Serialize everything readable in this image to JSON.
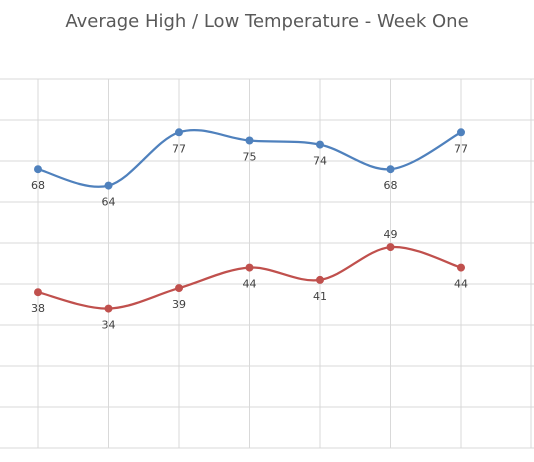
{
  "chart_data": {
    "type": "line",
    "title": "Average High / Low Temperature - Week One",
    "xlabel": "",
    "ylabel": "",
    "categories": [
      "",
      "",
      "",
      "",
      "",
      "",
      ""
    ],
    "grid": true,
    "legend": "none",
    "series": [
      {
        "values": [
          68,
          64,
          77,
          75,
          74,
          68,
          77
        ],
        "color": "#4f81bd"
      },
      {
        "values": [
          38,
          34,
          39,
          44,
          41,
          49,
          44
        ],
        "color": "#c0504d"
      }
    ]
  }
}
